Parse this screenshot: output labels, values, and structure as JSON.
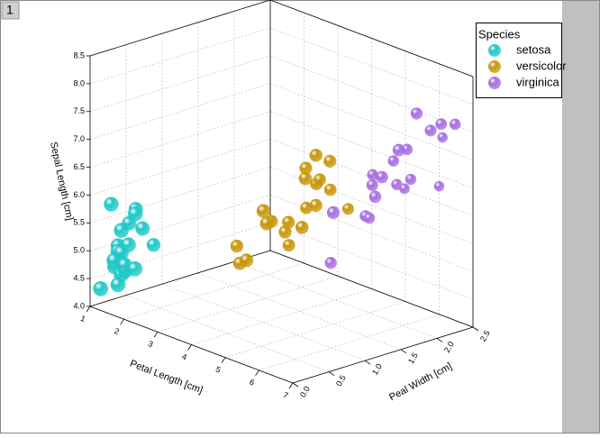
{
  "panel_label": "1",
  "chart_data": {
    "type": "scatter3d",
    "xlabel": "Petal Length [cm]",
    "ylabel": "Peal Width [cm]",
    "zlabel": "Sepal Length [cm]",
    "xlim": [
      1,
      7
    ],
    "xticks": [
      1,
      2,
      3,
      4,
      5,
      6,
      7
    ],
    "ylim": [
      0,
      2.5
    ],
    "yticks": [
      {
        "value": 0,
        "label": "0.0"
      },
      0.5,
      {
        "value": 1,
        "label": "1.0"
      },
      1.5,
      {
        "value": 2,
        "label": "2.0"
      },
      2.5
    ],
    "zlim": [
      4,
      8.5
    ],
    "zticks": [
      {
        "value": 4,
        "label": "4.0"
      },
      4.5,
      {
        "value": 5,
        "label": "5.0"
      },
      5.5,
      {
        "value": 6,
        "label": "6.0"
      },
      6.5,
      {
        "value": 7,
        "label": "7.0"
      },
      7.5,
      {
        "value": 8,
        "label": "8.0"
      },
      8.5
    ],
    "grid": true,
    "legend_title": "Species",
    "legend": "upper right",
    "series": [
      {
        "name": "setosa",
        "color": "#20c8c8",
        "x": [
          1.4,
          1.4,
          1.3,
          1.5,
          1.4,
          1.7,
          1.4,
          1.5,
          1.4,
          1.5,
          1.5,
          1.6,
          1.1,
          1.2,
          1.5,
          1.3,
          1.7,
          1.5,
          1.9,
          1.6
        ],
        "y": [
          0.2,
          0.2,
          0.2,
          0.2,
          0.2,
          0.4,
          0.3,
          0.2,
          0.2,
          0.1,
          0.2,
          0.2,
          0.1,
          0.2,
          0.4,
          0.4,
          0.3,
          0.3,
          0.2,
          0.6
        ],
        "z": [
          5.1,
          4.9,
          4.7,
          4.6,
          5.0,
          5.4,
          4.6,
          5.0,
          4.4,
          4.9,
          5.4,
          4.8,
          4.3,
          5.8,
          5.7,
          5.4,
          5.7,
          5.1,
          4.8,
          5.0
        ]
      },
      {
        "name": "versicolor",
        "color": "#c8960a",
        "x": [
          4.7,
          4.5,
          4.9,
          4.0,
          4.6,
          4.5,
          4.7,
          3.3,
          4.6,
          3.9,
          3.5,
          4.2,
          4.0,
          4.7,
          3.6,
          4.4,
          4.1,
          4.8,
          3.0,
          4.1
        ],
        "y": [
          1.4,
          1.5,
          1.5,
          1.3,
          1.5,
          1.3,
          1.6,
          1.0,
          1.3,
          1.4,
          1.0,
          1.5,
          1.0,
          1.4,
          1.3,
          1.4,
          1.0,
          1.8,
          1.1,
          1.3
        ],
        "z": [
          7.0,
          6.4,
          6.9,
          5.5,
          6.5,
          5.7,
          6.3,
          4.9,
          6.6,
          5.2,
          5.0,
          5.9,
          6.0,
          6.1,
          5.6,
          6.7,
          5.8,
          5.9,
          5.1,
          5.7
        ]
      },
      {
        "name": "virginica",
        "color": "#a86ee0",
        "x": [
          6.0,
          5.1,
          5.9,
          5.6,
          5.8,
          6.6,
          4.5,
          6.3,
          5.8,
          6.1,
          5.1,
          5.3,
          5.5,
          5.0,
          6.7,
          6.9,
          5.0,
          6.4,
          5.6,
          5.4
        ],
        "y": [
          2.5,
          1.9,
          2.1,
          1.8,
          2.2,
          2.1,
          1.7,
          1.8,
          1.8,
          2.5,
          2.0,
          1.9,
          2.1,
          2.0,
          2.2,
          2.3,
          1.5,
          2.0,
          2.1,
          2.3
        ],
        "z": [
          6.3,
          5.8,
          7.1,
          6.3,
          6.5,
          7.6,
          4.9,
          7.3,
          6.7,
          7.2,
          6.5,
          6.4,
          6.8,
          5.7,
          7.7,
          7.7,
          6.0,
          7.9,
          6.4,
          6.2
        ]
      }
    ]
  }
}
